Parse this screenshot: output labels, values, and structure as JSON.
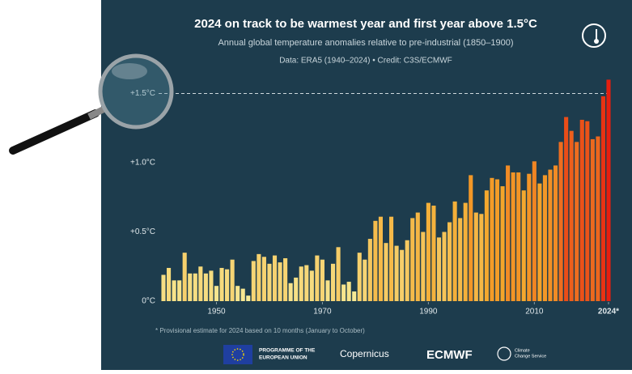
{
  "chart_data": {
    "type": "bar",
    "title": "2024 on track to be warmest year and first year above 1.5°C",
    "subtitle": "Annual global temperature anomalies relative to pre-industrial (1850–1900)",
    "source": "Data: ERA5 (1940–2024) • Credit: C3S/ECMWF",
    "footnote": "* Provisional estimate for 2024 based on 10 months (January to October)",
    "x": [
      1940,
      1941,
      1942,
      1943,
      1944,
      1945,
      1946,
      1947,
      1948,
      1949,
      1950,
      1951,
      1952,
      1953,
      1954,
      1955,
      1956,
      1957,
      1958,
      1959,
      1960,
      1961,
      1962,
      1963,
      1964,
      1965,
      1966,
      1967,
      1968,
      1969,
      1970,
      1971,
      1972,
      1973,
      1974,
      1975,
      1976,
      1977,
      1978,
      1979,
      1980,
      1981,
      1982,
      1983,
      1984,
      1985,
      1986,
      1987,
      1988,
      1989,
      1990,
      1991,
      1992,
      1993,
      1994,
      1995,
      1996,
      1997,
      1998,
      1999,
      2000,
      2001,
      2002,
      2003,
      2004,
      2005,
      2006,
      2007,
      2008,
      2009,
      2010,
      2011,
      2012,
      2013,
      2014,
      2015,
      2016,
      2017,
      2018,
      2019,
      2020,
      2021,
      2022,
      2023,
      2024
    ],
    "values": [
      0.19,
      0.24,
      0.15,
      0.15,
      0.35,
      0.2,
      0.2,
      0.25,
      0.2,
      0.22,
      0.11,
      0.24,
      0.23,
      0.3,
      0.11,
      0.09,
      0.04,
      0.29,
      0.34,
      0.32,
      0.27,
      0.33,
      0.28,
      0.31,
      0.13,
      0.17,
      0.25,
      0.26,
      0.22,
      0.33,
      0.3,
      0.15,
      0.27,
      0.39,
      0.12,
      0.14,
      0.07,
      0.35,
      0.3,
      0.45,
      0.58,
      0.61,
      0.42,
      0.61,
      0.4,
      0.37,
      0.44,
      0.6,
      0.64,
      0.5,
      0.71,
      0.69,
      0.46,
      0.5,
      0.57,
      0.72,
      0.6,
      0.71,
      0.91,
      0.64,
      0.63,
      0.8,
      0.89,
      0.88,
      0.83,
      0.98,
      0.93,
      0.93,
      0.8,
      0.92,
      1.01,
      0.85,
      0.91,
      0.95,
      0.98,
      1.15,
      1.33,
      1.23,
      1.15,
      1.31,
      1.3,
      1.17,
      1.19,
      1.48,
      1.6
    ],
    "color_scale": [
      "#f7ef9e",
      "#f4a62a",
      "#e4150d"
    ],
    "xlim": [
      1940,
      2024
    ],
    "xticks": [
      1950,
      1970,
      1990,
      2010,
      {
        "value": 2024,
        "label": "2024*"
      }
    ],
    "ylim": [
      0,
      1.65
    ],
    "yticks": [
      {
        "value": 0,
        "label": "0°C"
      },
      {
        "value": 0.5,
        "label": "+0.5°C"
      },
      {
        "value": 1.0,
        "label": "+1.0°C"
      },
      {
        "value": 1.5,
        "label": "+1.5°C"
      }
    ],
    "reference_line": 1.5,
    "logos": [
      "PROGRAMME OF THE",
      "EUROPEAN UNION",
      "Copernicus",
      "ECMWF",
      "Climate",
      "Change Service"
    ]
  }
}
